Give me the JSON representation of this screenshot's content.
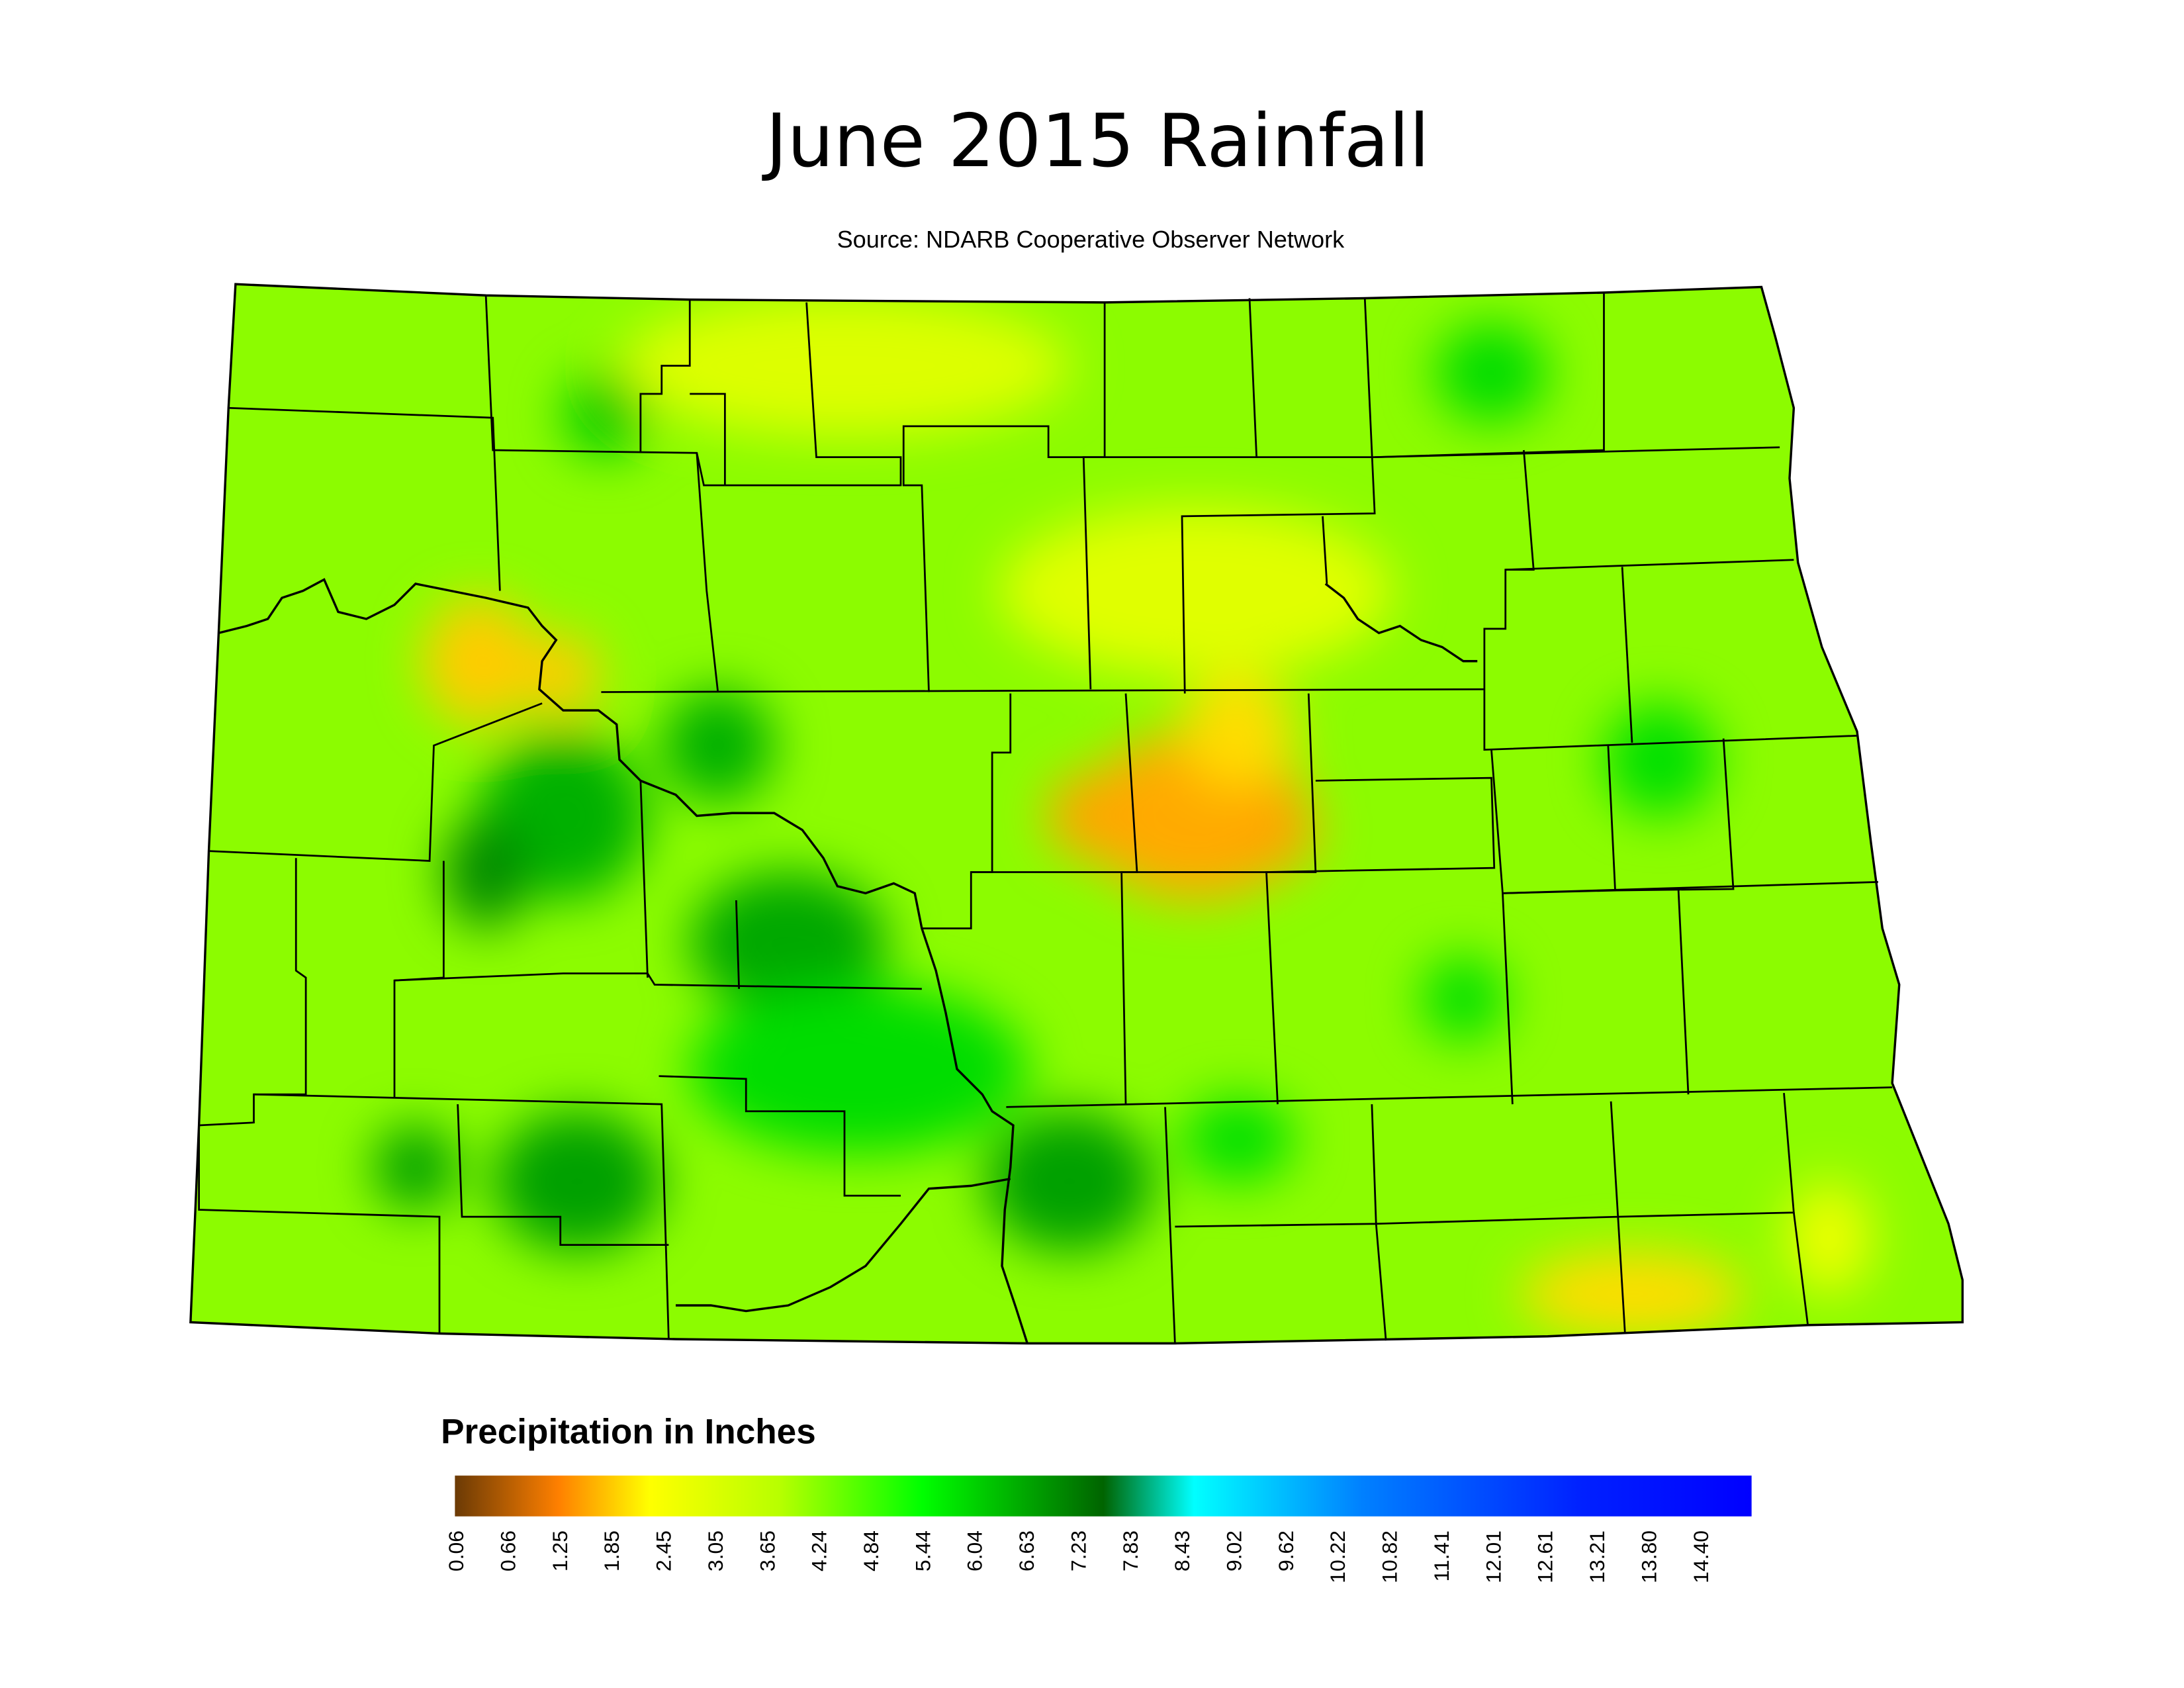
{
  "header": {
    "title": "June 2015 Rainfall",
    "source": "Source: NDARB Cooperative Observer Network"
  },
  "legend": {
    "title": "Precipitation in Inches",
    "ticks": [
      "0.06",
      "0.66",
      "1.25",
      "1.85",
      "2.45",
      "3.05",
      "3.65",
      "4.24",
      "4.84",
      "5.44",
      "6.04",
      "6.63",
      "7.23",
      "7.83",
      "8.43",
      "9.02",
      "9.62",
      "10.22",
      "10.82",
      "11.41",
      "12.01",
      "12.61",
      "13.21",
      "13.80",
      "14.40"
    ]
  }
}
